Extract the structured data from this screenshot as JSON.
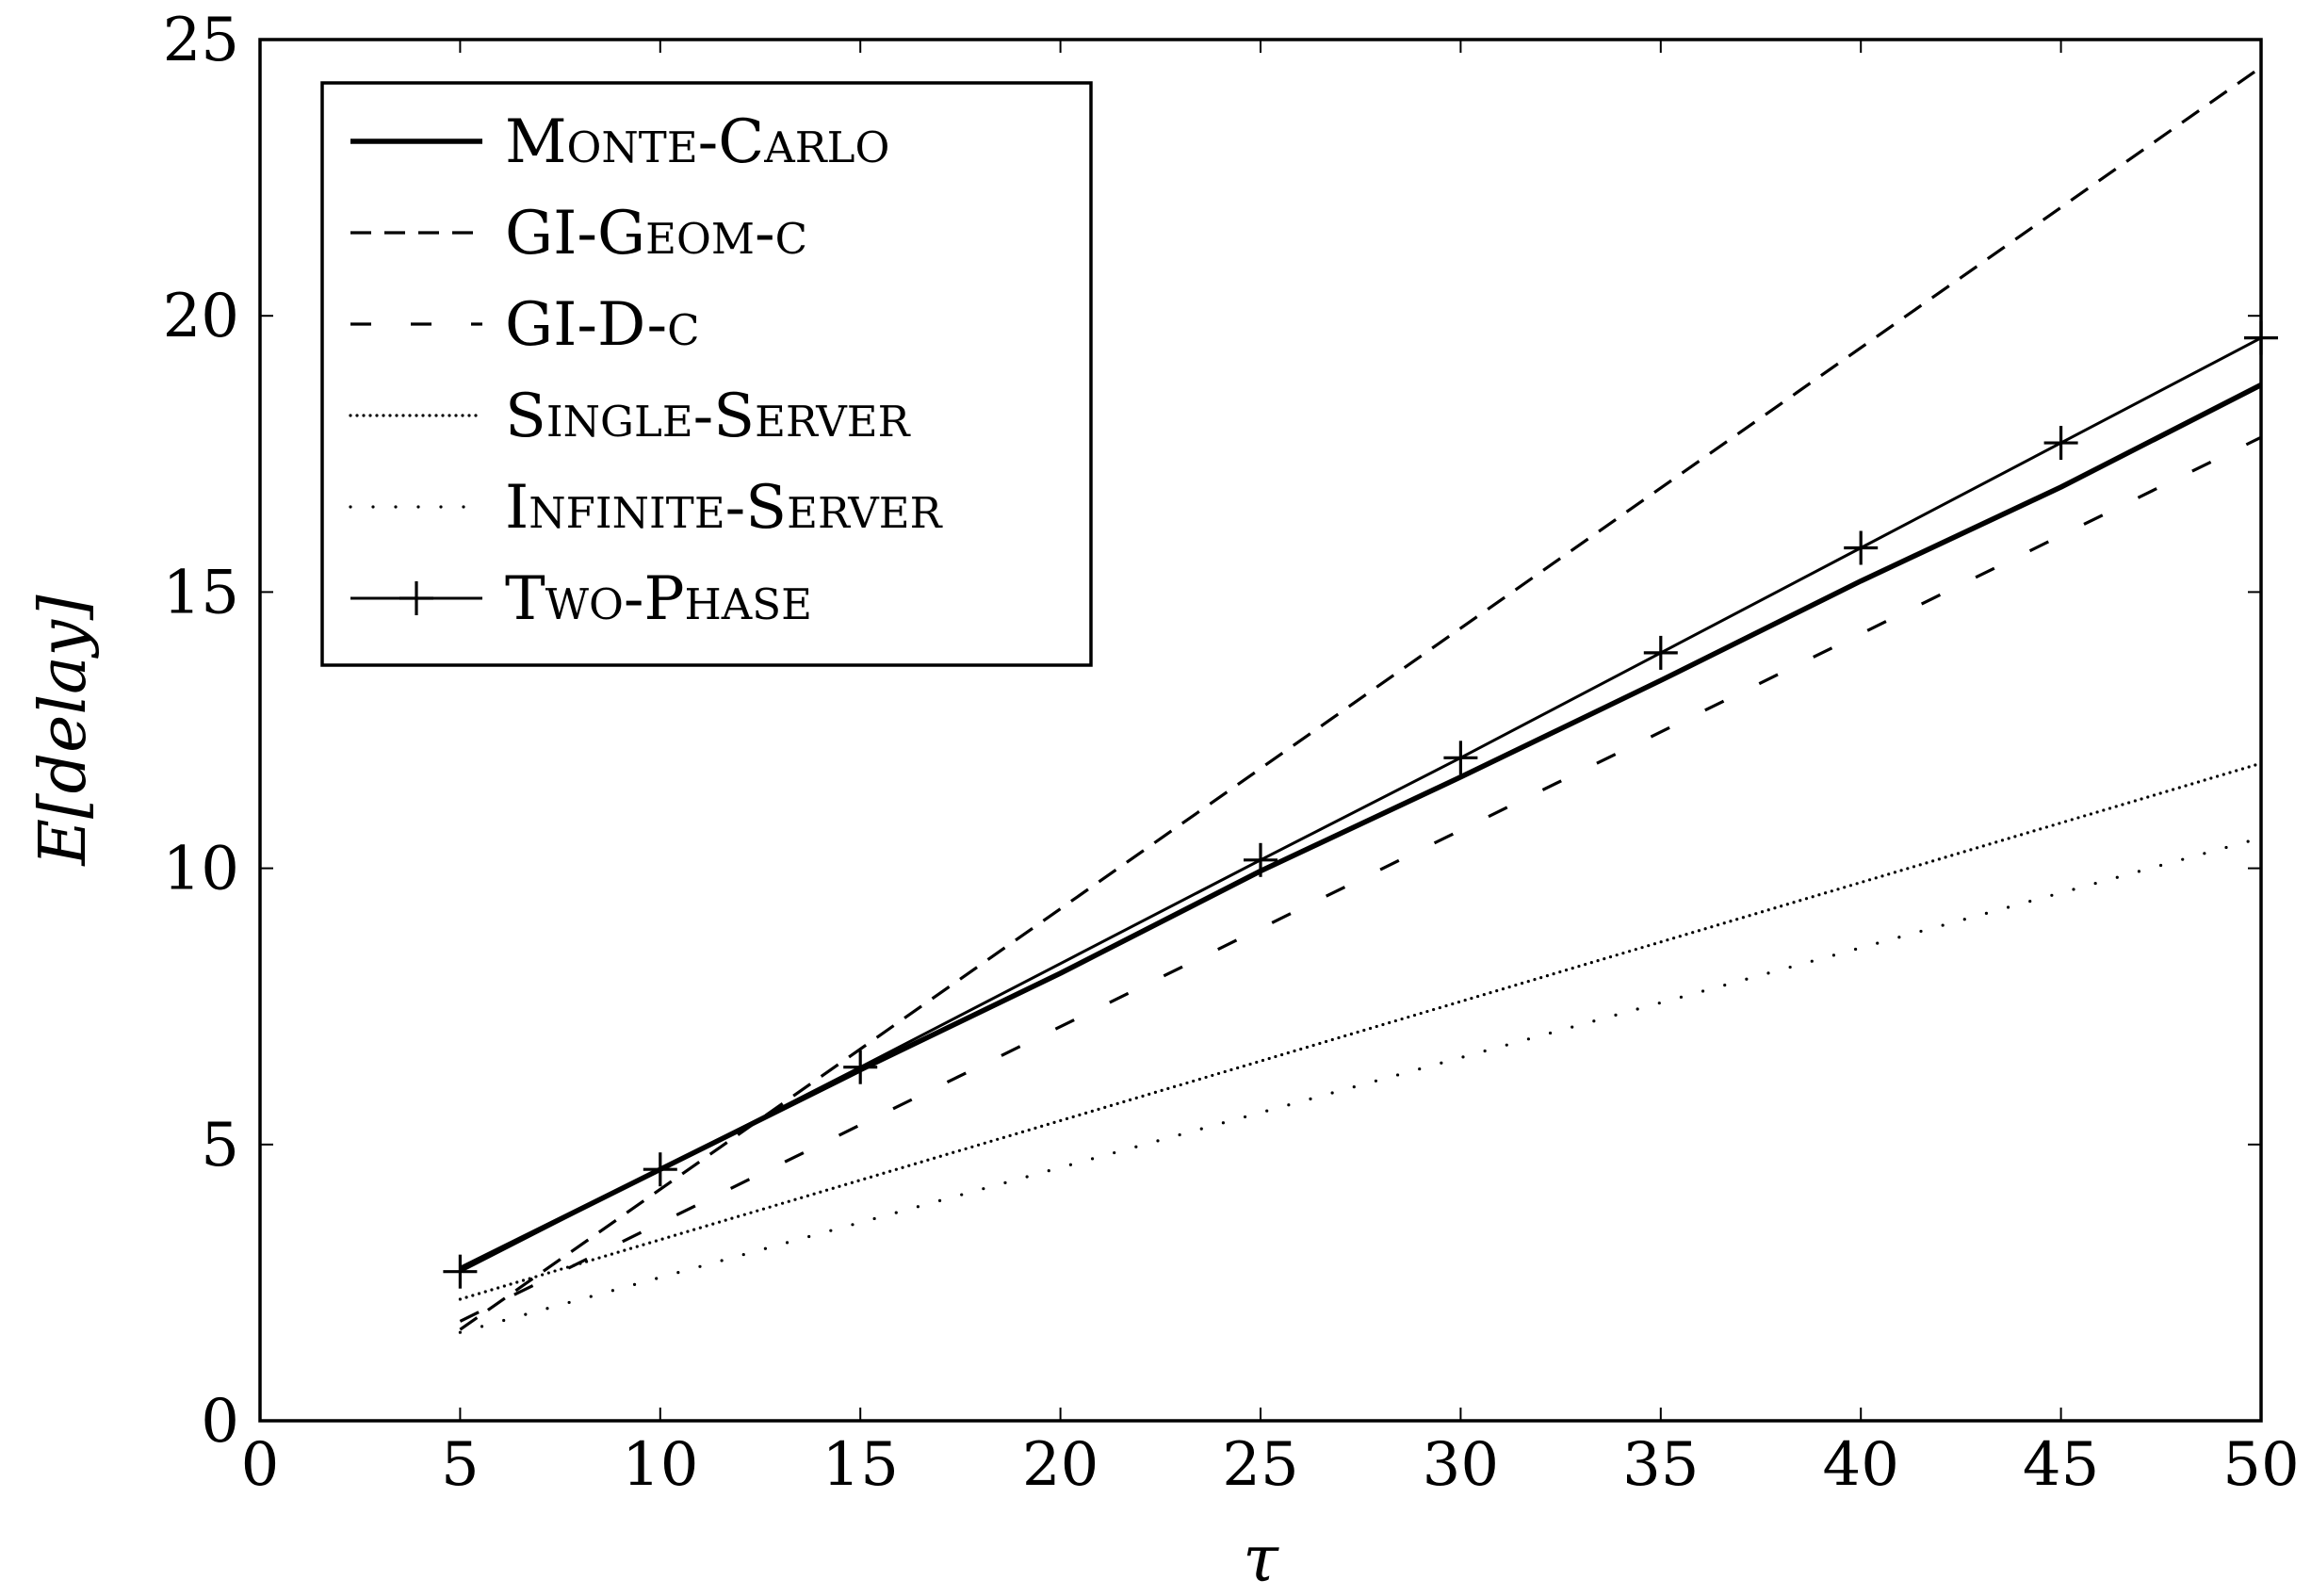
{
  "chart_data": {
    "type": "line",
    "title": "",
    "xlabel": "τ",
    "ylabel": "E[delay]",
    "xlim": [
      0,
      50
    ],
    "ylim": [
      0,
      25
    ],
    "xticks": [
      0,
      5,
      10,
      15,
      20,
      25,
      30,
      35,
      40,
      45,
      50
    ],
    "yticks": [
      0,
      5,
      10,
      15,
      20,
      25
    ],
    "xtick_labels": [
      "0",
      "5",
      "10",
      "15",
      "20",
      "25",
      "30",
      "35",
      "40",
      "45",
      "50"
    ],
    "ytick_labels": [
      "0",
      "5",
      "10",
      "15",
      "20",
      "25"
    ],
    "grid": false,
    "legend_position": "top-left",
    "series": [
      {
        "name": "Monte-Carlo",
        "style": "solid-thick",
        "color": "#000000",
        "x": [
          5,
          10,
          15,
          20,
          25,
          30,
          35,
          40,
          45,
          50
        ],
        "y": [
          2.75,
          4.55,
          6.35,
          8.1,
          9.95,
          11.65,
          13.4,
          15.2,
          16.9,
          18.75
        ]
      },
      {
        "name": "GI-Geom-c",
        "style": "dashed",
        "color": "#000000",
        "x": [
          5,
          50
        ],
        "y": [
          1.65,
          24.5
        ]
      },
      {
        "name": "GI-D-c",
        "style": "loosely-dashed",
        "color": "#000000",
        "x": [
          5,
          50
        ],
        "y": [
          1.8,
          17.8
        ]
      },
      {
        "name": "Single-Server",
        "style": "densely-dotted",
        "color": "#000000",
        "x": [
          5,
          50
        ],
        "y": [
          2.2,
          11.9
        ]
      },
      {
        "name": "Infinite-Server",
        "style": "loosely-dotted",
        "color": "#000000",
        "x": [
          5,
          50
        ],
        "y": [
          1.6,
          10.55
        ]
      },
      {
        "name": "Two-Phase",
        "style": "solid-plus-markers",
        "color": "#000000",
        "x": [
          5,
          10,
          15,
          25,
          30,
          35,
          40,
          45,
          50
        ],
        "y": [
          2.7,
          4.55,
          6.4,
          10.15,
          12.0,
          13.9,
          15.8,
          17.7,
          19.6
        ]
      }
    ]
  }
}
